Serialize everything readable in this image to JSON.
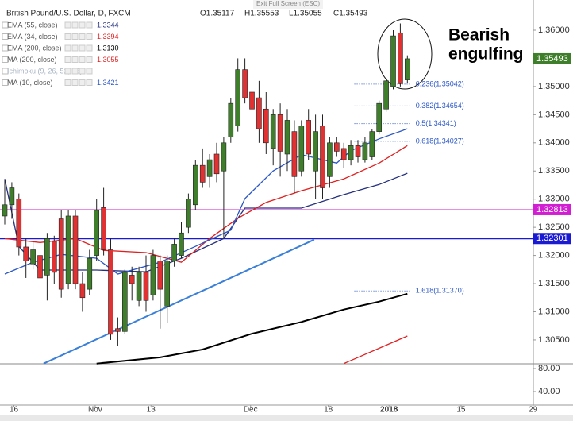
{
  "chart_data": {
    "type": "candlestick",
    "title": "British Pound/U.S. Dollar, D, FXCM",
    "ohlc_text": [
      "O1.35117",
      "H1.35553",
      "L1.35055",
      "C1.35493"
    ],
    "toolbar_text": "Exit Full Screen (ESC)",
    "annotation": [
      "Bearish",
      "engulfing"
    ],
    "up_color": "#3f7f2b",
    "down_color": "#e03232",
    "open": [
      1.327,
      1.329,
      1.33,
      1.3215,
      1.3185,
      1.32,
      1.3165,
      1.3225,
      1.3265,
      1.315,
      1.327,
      1.315,
      1.314,
      1.32,
      1.3285,
      1.321,
      1.307,
      1.3065,
      1.3165,
      1.312,
      1.317,
      1.313,
      1.319,
      1.311,
      1.319,
      1.32,
      1.325,
      1.329,
      1.336,
      1.334,
      1.338,
      1.335,
      1.341,
      1.343,
      1.353,
      1.349,
      1.348,
      1.346,
      1.339,
      1.345,
      1.338,
      1.342,
      1.335,
      1.344,
      1.335,
      1.343,
      1.334,
      1.34,
      1.339,
      1.337,
      1.3395,
      1.337,
      1.3375,
      1.342,
      1.346,
      1.35,
      1.3595,
      1.35117
    ],
    "high": [
      1.3335,
      1.333,
      1.331,
      1.323,
      1.3225,
      1.321,
      1.324,
      1.3235,
      1.328,
      1.328,
      1.328,
      1.317,
      1.321,
      1.33,
      1.332,
      1.323,
      1.309,
      1.3175,
      1.318,
      1.318,
      1.32,
      1.321,
      1.32,
      1.32,
      1.323,
      1.326,
      1.331,
      1.337,
      1.339,
      1.338,
      1.34,
      1.341,
      1.348,
      1.355,
      1.355,
      1.355,
      1.351,
      1.349,
      1.346,
      1.347,
      1.346,
      1.344,
      1.344,
      1.346,
      1.345,
      1.345,
      1.341,
      1.341,
      1.34,
      1.3405,
      1.3405,
      1.341,
      1.3425,
      1.3475,
      1.3515,
      1.36,
      1.3612,
      1.35553
    ],
    "low": [
      1.3255,
      1.3265,
      1.32,
      1.316,
      1.3175,
      1.314,
      1.312,
      1.315,
      1.3125,
      1.314,
      1.314,
      1.31,
      1.313,
      1.319,
      1.32,
      1.305,
      1.304,
      1.306,
      1.312,
      1.311,
      1.31,
      1.312,
      1.307,
      1.308,
      1.318,
      1.3195,
      1.324,
      1.328,
      1.332,
      1.332,
      1.333,
      1.323,
      1.34,
      1.342,
      1.347,
      1.344,
      1.34,
      1.338,
      1.336,
      1.334,
      1.335,
      1.331,
      1.334,
      1.337,
      1.33,
      1.33,
      1.332,
      1.3375,
      1.3355,
      1.336,
      1.3365,
      1.3365,
      1.337,
      1.3415,
      1.3455,
      1.3495,
      1.35,
      1.35055
    ],
    "close": [
      1.329,
      1.332,
      1.3215,
      1.319,
      1.321,
      1.316,
      1.323,
      1.317,
      1.314,
      1.327,
      1.315,
      1.3125,
      1.3195,
      1.328,
      1.321,
      1.306,
      1.3065,
      1.317,
      1.315,
      1.317,
      1.312,
      1.32,
      1.314,
      1.319,
      1.322,
      1.324,
      1.33,
      1.336,
      1.333,
      1.337,
      1.3345,
      1.34,
      1.347,
      1.353,
      1.348,
      1.346,
      1.3425,
      1.34,
      1.345,
      1.3385,
      1.344,
      1.334,
      1.343,
      1.338,
      1.342,
      1.332,
      1.34,
      1.3385,
      1.337,
      1.3395,
      1.3375,
      1.34,
      1.342,
      1.347,
      1.351,
      1.359,
      1.3505,
      1.35493
    ],
    "indicators": [
      {
        "name": "EMA (55, close)",
        "value_label": "1.3344",
        "color": "#24307e",
        "x": [
          0,
          2,
          5,
          13,
          20,
          25,
          31,
          34,
          36,
          42,
          48,
          53,
          57
        ],
        "values": [
          1.3336,
          1.3216,
          1.3174,
          1.3174,
          1.3171,
          1.3195,
          1.323,
          1.3284,
          1.3284,
          1.3284,
          1.3308,
          1.3326,
          1.3346
        ]
      },
      {
        "name": "EMA (34, close)",
        "value_label": "1.3394",
        "color": "#e02020",
        "x": [
          0,
          5,
          10,
          14,
          20,
          25,
          29,
          33,
          37,
          42,
          48,
          53,
          57
        ],
        "values": [
          1.323,
          1.3223,
          1.323,
          1.3209,
          1.3205,
          1.3188,
          1.323,
          1.3266,
          1.3294,
          1.3315,
          1.3336,
          1.3364,
          1.3395
        ]
      },
      {
        "name": "EMA (200, close)",
        "value_label": "1.3130",
        "color": "#000000",
        "x": [
          13,
          22,
          28,
          35,
          42,
          48,
          53,
          57
        ],
        "values": [
          1.3008,
          1.3019,
          1.3033,
          1.3061,
          1.3082,
          1.3104,
          1.3118,
          1.3132
        ]
      },
      {
        "name": "MA (200, close)",
        "value_label": "1.3055",
        "color": "#e02020",
        "x": [
          48,
          57
        ],
        "values": [
          1.3008,
          1.3057
        ]
      },
      {
        "name": "Ichimoku (9, 26, 52, 26)",
        "color": "#a8b4c4"
      },
      {
        "name": "MA (10, close)",
        "value_label": "1.3421",
        "color": "#2a56c6",
        "x": [
          0,
          4,
          8,
          13,
          16,
          22,
          27,
          32,
          34,
          38,
          42,
          47,
          49,
          53,
          57
        ],
        "values": [
          1.3167,
          1.3188,
          1.3202,
          1.3195,
          1.3167,
          1.3188,
          1.3216,
          1.3245,
          1.3301,
          1.335,
          1.3379,
          1.3364,
          1.3386,
          1.3407,
          1.3425
        ]
      }
    ],
    "trendline": {
      "color": "#3a7fd8",
      "x": [
        5.5,
        43.8
      ],
      "values": [
        1.3008,
        1.3228
      ]
    },
    "price_lines": [
      {
        "value": 1.32813,
        "color": "#d21ed2"
      },
      {
        "value": 1.32301,
        "color": "#1a1ad2"
      }
    ],
    "last_price": {
      "value": 1.35493,
      "color": "#3f7f2b"
    },
    "fib": {
      "color": "#2a56c6",
      "x": [
        49.5,
        57.5
      ],
      "levels": [
        {
          "label": "0.236(1.35042)",
          "value": 1.35042
        },
        {
          "label": "0.382(1.34654)",
          "value": 1.34654
        },
        {
          "label": "0.5(1.34341)",
          "value": 1.34341
        },
        {
          "label": "0.618(1.34027)",
          "value": 1.34027
        },
        {
          "label": "1.618(1.31370)",
          "value": 1.3137
        }
      ]
    },
    "xlim": [
      -0.674,
      74.83
    ],
    "xticks": [
      {
        "value": 1.3,
        "label": "16"
      },
      {
        "value": 12.8,
        "label": "Nov"
      },
      {
        "value": 20.7,
        "label": "13"
      },
      {
        "value": 34.8,
        "label": "Dec"
      },
      {
        "value": 45.8,
        "label": "18"
      },
      {
        "value": 54.4,
        "label": "2018"
      },
      {
        "value": 64.6,
        "label": "15"
      },
      {
        "value": 74.8,
        "label": "29"
      }
    ],
    "ylim": [
      1.30076,
      1.36536
    ],
    "yticks": [
      {
        "value": 1.36,
        "label": "1.36000"
      },
      {
        "value": 1.35,
        "label": "1.35000"
      },
      {
        "value": 1.345,
        "label": "1.34500"
      },
      {
        "value": 1.34,
        "label": "1.34000"
      },
      {
        "value": 1.335,
        "label": "1.33500"
      },
      {
        "value": 1.33,
        "label": "1.33000"
      },
      {
        "value": 1.325,
        "label": "1.32500"
      },
      {
        "value": 1.32,
        "label": "1.32000"
      },
      {
        "value": 1.315,
        "label": "1.31500"
      },
      {
        "value": 1.31,
        "label": "1.31000"
      },
      {
        "value": 1.305,
        "label": "1.30500"
      }
    ],
    "lower_ylim": [
      16.5,
      88.3
    ],
    "lower_yticks": [
      {
        "value": 80,
        "label": "80.00"
      },
      {
        "value": 40,
        "label": "40.00"
      }
    ]
  }
}
